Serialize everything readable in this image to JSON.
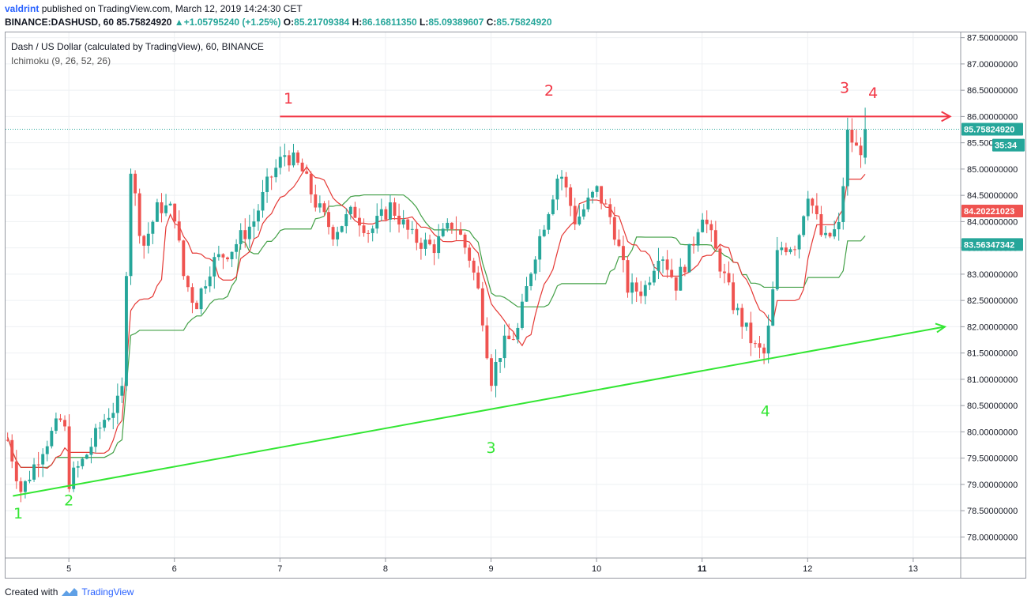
{
  "header": {
    "user": "valdrint",
    "published": "published on TradingView.com, March 12, 2019 14:24:30 CET",
    "symbol": "BINANCE:DASHUSD, 60",
    "last": "85.75824920",
    "change": "+1.05795240 (+1.25%)",
    "o_label": "O:",
    "o": "85.21709384",
    "h_label": "H:",
    "h": "86.16811350",
    "l_label": "L:",
    "l": "85.09389607",
    "c_label": "C:",
    "c": "85.75824920"
  },
  "legend": {
    "title": "Dash / US Dollar (calculated by TradingView), 60, BINANCE",
    "indicator": "Ichimoku (9, 26, 52, 26)"
  },
  "footer": {
    "created_with": "Created with",
    "brand": "TradingView"
  },
  "colors": {
    "up": "#26a69a",
    "down": "#ef5350",
    "conversion_line": "#e53935",
    "base_line": "#43a047",
    "resistance": "#f23645",
    "support": "#33e633"
  },
  "chart_data": {
    "type": "candlestick",
    "x_ticks": [
      "5",
      "6",
      "7",
      "8",
      "9",
      "10",
      "11",
      "12",
      "13"
    ],
    "y_ticks": [
      "78.00000000",
      "78.50000000",
      "79.00000000",
      "79.50000000",
      "80.00000000",
      "80.50000000",
      "81.00000000",
      "81.50000000",
      "82.00000000",
      "82.50000000",
      "83.00000000",
      "83.50000000",
      "84.00000000",
      "84.50000000",
      "85.00000000",
      "85.50000000",
      "86.00000000",
      "86.50000000",
      "87.00000000",
      "87.50000000"
    ],
    "ylim": [
      77.6,
      87.6
    ],
    "xlim": [
      4.4,
      13.45
    ],
    "price_labels": [
      {
        "value": 85.7582492,
        "text": "85.75824920",
        "color": "#26a69a"
      },
      {
        "value": 85.5,
        "text": "35:34",
        "color": "#26a69a",
        "countdown": true
      },
      {
        "value": 84.20221023,
        "text": "84.20221023",
        "color": "#ef5350"
      },
      {
        "value": 83.56347342,
        "text": "83.56347342",
        "color": "#26a69a"
      }
    ],
    "candle_anchors": [
      [
        4.4,
        80.0
      ],
      [
        4.55,
        78.85
      ],
      [
        4.75,
        79.7
      ],
      [
        4.95,
        80.3
      ],
      [
        5.0,
        79.05
      ],
      [
        5.15,
        79.5
      ],
      [
        5.35,
        80.3
      ],
      [
        5.5,
        80.6
      ],
      [
        5.58,
        85.1
      ],
      [
        5.7,
        83.5
      ],
      [
        5.85,
        84.3
      ],
      [
        6.0,
        84.2
      ],
      [
        6.08,
        83.0
      ],
      [
        6.2,
        82.4
      ],
      [
        6.35,
        83.2
      ],
      [
        6.55,
        83.5
      ],
      [
        6.75,
        84.0
      ],
      [
        6.9,
        84.8
      ],
      [
        7.05,
        85.3
      ],
      [
        7.2,
        85.0
      ],
      [
        7.35,
        84.3
      ],
      [
        7.5,
        83.8
      ],
      [
        7.7,
        84.2
      ],
      [
        7.85,
        83.8
      ],
      [
        8.05,
        84.3
      ],
      [
        8.25,
        83.7
      ],
      [
        8.45,
        83.5
      ],
      [
        8.65,
        84.0
      ],
      [
        8.8,
        83.3
      ],
      [
        8.9,
        82.5
      ],
      [
        9.0,
        81.0
      ],
      [
        9.1,
        81.6
      ],
      [
        9.25,
        81.9
      ],
      [
        9.4,
        83.3
      ],
      [
        9.55,
        84.3
      ],
      [
        9.65,
        85.0
      ],
      [
        9.8,
        84.0
      ],
      [
        10.0,
        84.6
      ],
      [
        10.15,
        84.0
      ],
      [
        10.3,
        82.7
      ],
      [
        10.45,
        82.7
      ],
      [
        10.6,
        83.5
      ],
      [
        10.75,
        82.8
      ],
      [
        10.9,
        83.5
      ],
      [
        11.0,
        84.2
      ],
      [
        11.15,
        83.3
      ],
      [
        11.3,
        82.4
      ],
      [
        11.5,
        81.6
      ],
      [
        11.6,
        81.45
      ],
      [
        11.72,
        83.5
      ],
      [
        11.9,
        83.6
      ],
      [
        12.0,
        84.6
      ],
      [
        12.15,
        83.6
      ],
      [
        12.3,
        83.9
      ],
      [
        12.38,
        85.7
      ],
      [
        12.48,
        85.3
      ],
      [
        12.58,
        85.758
      ]
    ],
    "series": [
      {
        "name": "Ichimoku (9, 26, 52, 26)"
      }
    ],
    "annotations": {
      "resistance_line": {
        "x1": 7.0,
        "y1": 86.0,
        "x2": 13.35,
        "y2": 86.0
      },
      "support_line": {
        "x1": 4.47,
        "y1": 78.78,
        "x2": 13.3,
        "y2": 82.0
      },
      "red_labels": [
        {
          "text": "1",
          "x": 7.08,
          "y": 86.25
        },
        {
          "text": "2",
          "x": 9.55,
          "y": 86.4
        },
        {
          "text": "3",
          "x": 12.35,
          "y": 86.45
        },
        {
          "text": "4",
          "x": 12.62,
          "y": 86.35
        }
      ],
      "green_labels": [
        {
          "text": "1",
          "x": 4.52,
          "y": 78.35
        },
        {
          "text": "2",
          "x": 5.0,
          "y": 78.6
        },
        {
          "text": "3",
          "x": 9.0,
          "y": 79.6
        },
        {
          "text": "4",
          "x": 11.6,
          "y": 80.3
        }
      ]
    }
  }
}
